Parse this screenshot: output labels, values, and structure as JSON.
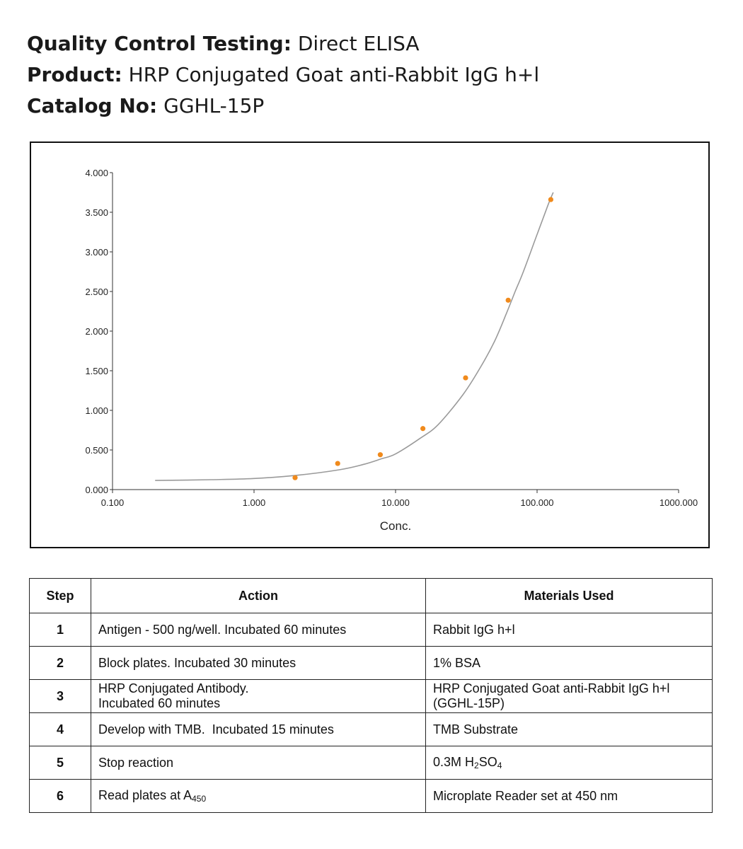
{
  "header": {
    "qc_label": "Quality Control Testing:",
    "qc_value": "Direct ELISA",
    "product_label": "Product:",
    "product_value": "HRP Conjugated Goat anti-Rabbit IgG h+l",
    "catalog_label": "Catalog No:",
    "catalog_value": "GGHL-15P"
  },
  "chart_data": {
    "type": "scatter",
    "title": "",
    "xlabel": "Conc.",
    "ylabel": "",
    "x_scale": "log",
    "xlim": [
      0.1,
      1000
    ],
    "ylim": [
      0,
      4
    ],
    "x_ticks": [
      "0.100",
      "1.000",
      "10.000",
      "100.000",
      "1000.000"
    ],
    "y_ticks": [
      "0.000",
      "0.500",
      "1.000",
      "1.500",
      "2.000",
      "2.500",
      "3.000",
      "3.500",
      "4.000"
    ],
    "grid": false,
    "legend": "none",
    "point_color": "#f08a1c",
    "curve_color": "#9a9a9a",
    "points": [
      {
        "x": 1.95,
        "y": 0.15
      },
      {
        "x": 3.9,
        "y": 0.33
      },
      {
        "x": 7.8,
        "y": 0.44
      },
      {
        "x": 15.6,
        "y": 0.77
      },
      {
        "x": 31.25,
        "y": 1.41
      },
      {
        "x": 62.5,
        "y": 2.39
      },
      {
        "x": 125,
        "y": 3.66
      }
    ],
    "fit_curve": {
      "x": [
        0.2,
        0.5,
        1,
        2,
        4,
        6,
        8,
        10,
        15,
        20,
        30,
        40,
        50,
        60,
        70,
        80,
        100,
        120,
        130
      ],
      "y": [
        0.115,
        0.125,
        0.14,
        0.18,
        0.25,
        0.32,
        0.39,
        0.45,
        0.65,
        0.82,
        1.2,
        1.55,
        1.87,
        2.2,
        2.5,
        2.75,
        3.22,
        3.6,
        3.75
      ]
    }
  },
  "table": {
    "headers": [
      "Step",
      "Action",
      "Materials Used"
    ],
    "rows": [
      {
        "step": "1",
        "action": [
          "Antigen - 500 ng/well. Incubated 60 minutes"
        ],
        "materials": [
          "Rabbit IgG h+l"
        ]
      },
      {
        "step": "2",
        "action": [
          "Block plates. Incubated 30 minutes"
        ],
        "materials": [
          "1% BSA"
        ]
      },
      {
        "step": "3",
        "action": [
          "HRP Conjugated Antibody.",
          "Incubated 60 minutes"
        ],
        "materials": [
          "HRP Conjugated Goat anti-Rabbit IgG h+l",
          "(GGHL-15P)"
        ]
      },
      {
        "step": "4",
        "action": [
          "Develop with TMB.  Incubated 15 minutes"
        ],
        "materials": [
          "TMB Substrate"
        ]
      },
      {
        "step": "5",
        "action": [
          "Stop reaction"
        ],
        "materials": [
          "0.3M H",
          "2",
          "SO",
          "4"
        ]
      },
      {
        "step": "6",
        "action": [
          "Read plates at A",
          "450"
        ],
        "materials": [
          "Microplate Reader set at 450 nm"
        ]
      }
    ]
  }
}
